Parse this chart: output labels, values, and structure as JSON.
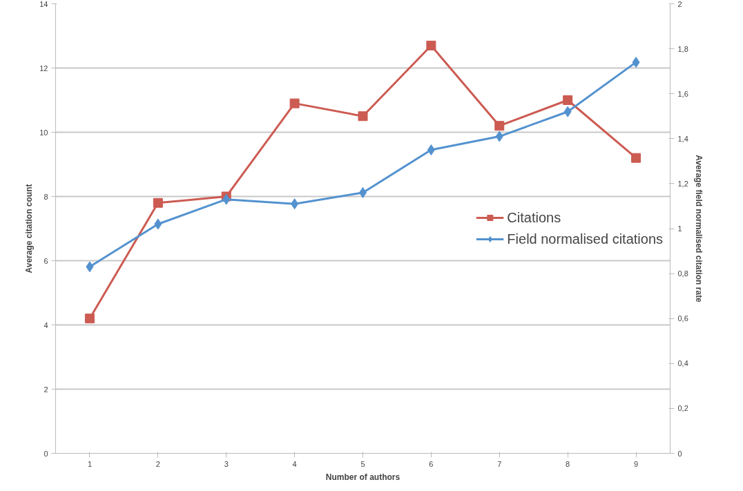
{
  "chart_data": {
    "type": "line",
    "xlabel": "Number of authors",
    "ylabel": "Average citation count",
    "y2label": "Average field normalised citation rate",
    "categories": [
      "1",
      "2",
      "3",
      "4",
      "5",
      "6",
      "7",
      "8",
      "9"
    ],
    "series": [
      {
        "name": "Citations",
        "color": "#cc5b52",
        "marker": "square",
        "values": [
          4.2,
          7.8,
          8.0,
          10.9,
          10.5,
          12.7,
          10.2,
          11.0,
          9.2
        ]
      },
      {
        "name": "Field normalised citations",
        "color": "#5392cf",
        "marker": "diamond",
        "axis": "y2",
        "values": [
          0.83,
          1.02,
          1.13,
          1.11,
          1.16,
          1.35,
          1.41,
          1.52,
          1.74
        ]
      }
    ],
    "ylim": [
      0,
      14
    ],
    "yticks": [
      0,
      2,
      4,
      6,
      8,
      10,
      12,
      14
    ],
    "y2lim": [
      0,
      2
    ],
    "y2ticks": [
      0,
      {
        "value": 0.2,
        "label": "0,2"
      },
      {
        "value": 0.4,
        "label": "0,4"
      },
      {
        "value": 0.6,
        "label": "0,6"
      },
      {
        "value": 0.8,
        "label": "0,8"
      },
      1,
      {
        "value": 1.2,
        "label": "1,2"
      },
      {
        "value": 1.4,
        "label": "1,4"
      },
      {
        "value": 1.6,
        "label": "1,6"
      },
      {
        "value": 1.8,
        "label": "1,8"
      },
      2
    ],
    "grid": "y",
    "legend": "right",
    "line_style": "solid"
  }
}
